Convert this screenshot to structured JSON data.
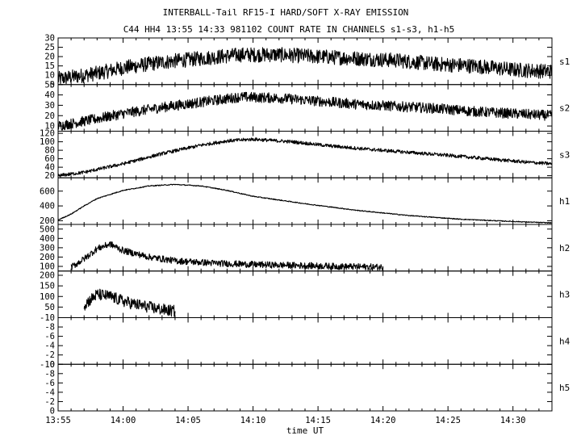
{
  "chart_data": {
    "type": "line",
    "title": "INTERBALL-Tail RF15-I HARD/SOFT X-RAY EMISSION",
    "subtitle": "C44 HH4 13:55 14:33 981102  COUNT RATE IN CHANNELS s1-s3, h1-h5",
    "xlabel": "time UT",
    "x_range": [
      "13:55",
      "14:33"
    ],
    "x_ticks": [
      "13:55",
      "14:00",
      "14:05",
      "14:10",
      "14:15",
      "14:20",
      "14:25",
      "14:30"
    ],
    "line_color": "#000000",
    "panels": [
      {
        "name": "s1",
        "ylim": [
          5,
          30
        ],
        "yticks": [
          5,
          10,
          15,
          20,
          25,
          30
        ],
        "start": "13:55",
        "end": "14:33",
        "x": [
          "13:55",
          "13:58",
          "14:00",
          "14:03",
          "14:06",
          "14:09",
          "14:12",
          "14:15",
          "14:18",
          "14:21",
          "14:24",
          "14:27",
          "14:30",
          "14:33"
        ],
        "y": [
          8,
          11,
          14,
          17,
          19,
          21,
          21,
          20,
          19,
          18,
          16,
          15,
          13,
          12
        ],
        "noise": 4
      },
      {
        "name": "s2",
        "ylim": [
          5,
          50
        ],
        "yticks": [
          10,
          20,
          30,
          40,
          50
        ],
        "start": "13:55",
        "end": "14:33",
        "x": [
          "13:55",
          "13:58",
          "14:00",
          "14:03",
          "14:06",
          "14:09",
          "14:12",
          "14:15",
          "14:18",
          "14:21",
          "14:24",
          "14:27",
          "14:30",
          "14:33"
        ],
        "y": [
          10,
          17,
          22,
          28,
          33,
          38,
          37,
          34,
          31,
          29,
          27,
          24,
          22,
          20
        ],
        "noise": 5
      },
      {
        "name": "s3",
        "ylim": [
          15,
          125
        ],
        "yticks": [
          20,
          40,
          60,
          80,
          100,
          120
        ],
        "start": "13:55",
        "end": "14:33",
        "x": [
          "13:55",
          "13:57",
          "14:00",
          "14:03",
          "14:06",
          "14:08",
          "14:10",
          "14:13",
          "14:16",
          "14:19",
          "14:22",
          "14:25",
          "14:28",
          "14:31",
          "14:33"
        ],
        "y": [
          20,
          28,
          48,
          72,
          92,
          102,
          106,
          100,
          90,
          82,
          75,
          68,
          60,
          52,
          48
        ],
        "noise": 4
      },
      {
        "name": "h1",
        "ylim": [
          150,
          780
        ],
        "yticks": [
          200,
          400,
          600
        ],
        "start": "13:55",
        "end": "14:33",
        "x": [
          "13:55",
          "13:56",
          "13:57",
          "13:58",
          "14:00",
          "14:02",
          "14:04",
          "14:06",
          "14:08",
          "14:10",
          "14:14",
          "14:18",
          "14:22",
          "14:26",
          "14:30",
          "14:33"
        ],
        "y": [
          210,
          290,
          400,
          500,
          610,
          670,
          690,
          670,
          610,
          530,
          430,
          340,
          270,
          220,
          190,
          170
        ],
        "noise": 6
      },
      {
        "name": "h2",
        "ylim": [
          50,
          550
        ],
        "yticks": [
          100,
          200,
          300,
          400,
          500
        ],
        "start": "13:56",
        "end": "14:20",
        "x": [
          "13:56",
          "13:57",
          "13:58",
          "13:59",
          "14:00",
          "14:02",
          "14:04",
          "14:07",
          "14:10",
          "14:14",
          "14:17",
          "14:20"
        ],
        "y": [
          90,
          180,
          290,
          340,
          270,
          200,
          160,
          135,
          120,
          108,
          98,
          92
        ],
        "noise": 35
      },
      {
        "name": "h3",
        "ylim": [
          0,
          220
        ],
        "yticks": [
          50,
          100,
          150,
          200
        ],
        "start": "13:57",
        "end": "14:04",
        "x": [
          "13:57",
          "13:58",
          "13:59",
          "14:00",
          "14:01",
          "14:02",
          "14:03",
          "14:04"
        ],
        "y": [
          60,
          110,
          100,
          78,
          62,
          50,
          38,
          30
        ],
        "noise": 28
      },
      {
        "name": "h4",
        "ylim": [
          0,
          10
        ],
        "yticks": [
          0,
          2,
          4,
          6,
          8,
          10
        ],
        "ytick_labels": [
          "0",
          "-2",
          "-4",
          "-6",
          "-8",
          "-10"
        ],
        "x": [],
        "y": []
      },
      {
        "name": "h5",
        "ylim": [
          0,
          10
        ],
        "yticks": [
          0,
          2,
          4,
          6,
          8,
          10
        ],
        "ytick_labels": [
          "0",
          "-2",
          "-4",
          "-6",
          "-8",
          "-10"
        ],
        "x": [],
        "y": []
      }
    ]
  }
}
